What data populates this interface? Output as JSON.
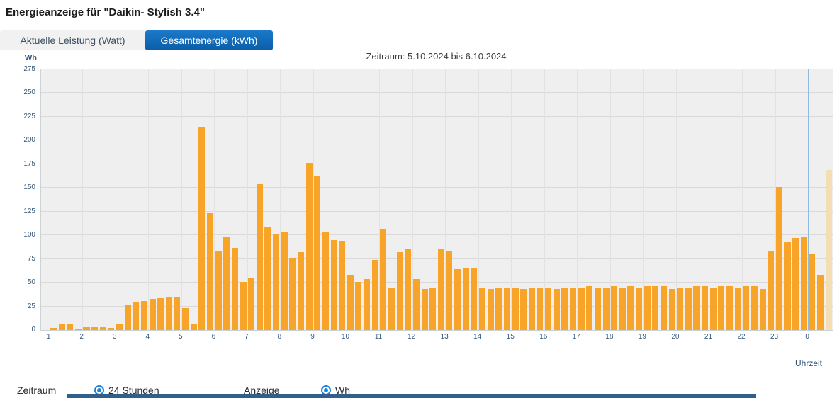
{
  "page": {
    "title": "Energieanzeige für \"Daikin- Stylish 3.4\""
  },
  "tabs": [
    {
      "label": "Aktuelle Leistung (Watt)",
      "active": false
    },
    {
      "label": "Gesamtenergie (kWh)",
      "active": true
    }
  ],
  "chart_data": {
    "type": "bar",
    "title": "Zeitraum: 5.10.2024 bis 6.10.2024",
    "y_axis_label": "Wh",
    "x_axis_label": "Uhrzeit",
    "ylim": [
      0,
      275
    ],
    "y_ticks": [
      0,
      25,
      50,
      75,
      100,
      125,
      150,
      175,
      200,
      225,
      250,
      275
    ],
    "x_tick_labels": [
      "1",
      "2",
      "3",
      "4",
      "5",
      "6",
      "7",
      "8",
      "9",
      "10",
      "11",
      "12",
      "13",
      "14",
      "15",
      "16",
      "17",
      "18",
      "19",
      "20",
      "21",
      "22",
      "23",
      "0"
    ],
    "bars_per_hour": 4,
    "interval_minutes": 15,
    "values": [
      0,
      2,
      7,
      7,
      1,
      3,
      3,
      3,
      2,
      7,
      27,
      30,
      31,
      33,
      34,
      35,
      35,
      23,
      6,
      214,
      123,
      84,
      98,
      87,
      51,
      55,
      154,
      108,
      102,
      104,
      76,
      82,
      176,
      162,
      104,
      95,
      94,
      58,
      51,
      54,
      74,
      106,
      44,
      82,
      86,
      54,
      43,
      45,
      86,
      83,
      64,
      66,
      65,
      44,
      43,
      44,
      44,
      44,
      43,
      44,
      44,
      44,
      43,
      44,
      44,
      44,
      46,
      45,
      45,
      46,
      45,
      46,
      44,
      46,
      46,
      46,
      43,
      45,
      45,
      46,
      46,
      45,
      46,
      46,
      45,
      46,
      46,
      43,
      84,
      151,
      93,
      97,
      98,
      80,
      58,
      169
    ],
    "last_bar_in_progress": true,
    "midnight_line_index": 93,
    "grid": true,
    "legend": "none",
    "colors": {
      "bar": "#F7A428",
      "bar_pending": "#F4DFB5",
      "plot_background": "#EFEFEF",
      "gridline": "#D9D9D9",
      "midnight_line": "#90BBDF",
      "tick_text": "#33577B",
      "active_tab": "#0E66B3"
    }
  },
  "controls": {
    "zeitraum_label": "Zeitraum",
    "zeitraum_value": "24 Stunden",
    "anzeige_label": "Anzeige",
    "anzeige_value": "Wh"
  }
}
